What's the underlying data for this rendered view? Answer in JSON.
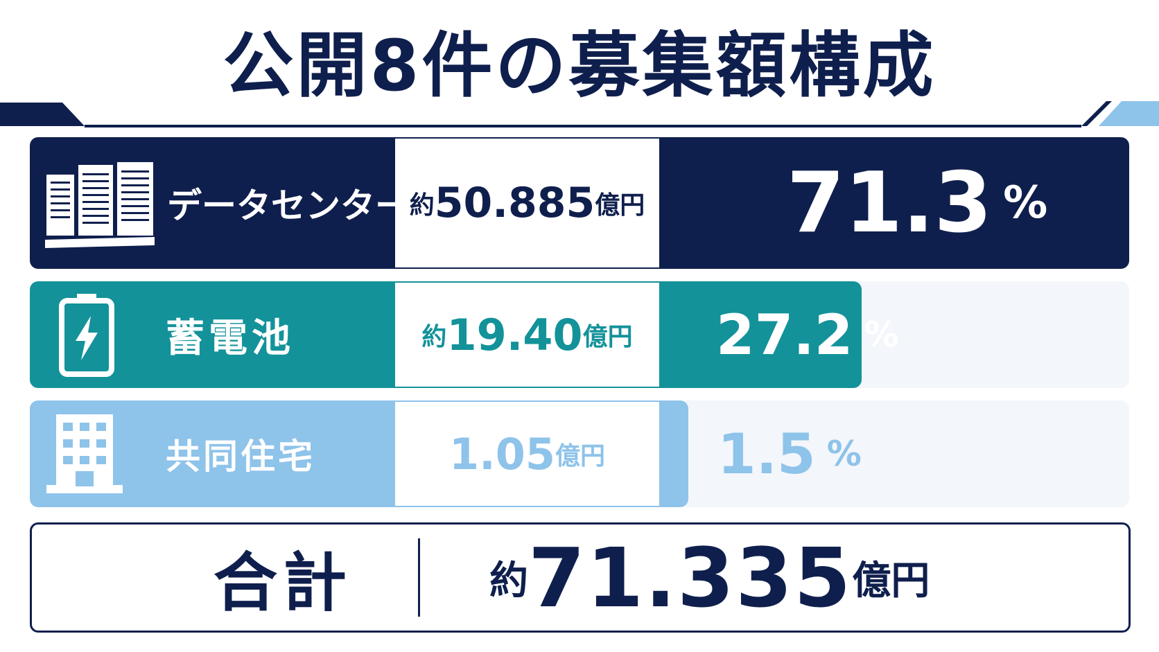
{
  "title": "公開8件の募集額構成",
  "colors": {
    "navy": "#0f1f4d",
    "teal": "#13929a",
    "lightblue": "#8ec3ea",
    "track": "#f3f6fb"
  },
  "chart_data": {
    "type": "bar",
    "orientation": "horizontal",
    "categories": [
      "データセンター",
      "蓄電池",
      "共同住宅"
    ],
    "series": [
      {
        "values": [
          71.3,
          27.2,
          1.5
        ]
      }
    ],
    "amounts": [
      {
        "prefix": "約",
        "value": "50.885",
        "unit": "億円"
      },
      {
        "prefix": "約",
        "value": "19.40",
        "unit": "億円"
      },
      {
        "prefix": "",
        "value": "1.05",
        "unit": "億円"
      }
    ],
    "percent_symbol": "%",
    "icons": [
      "server-racks-icon",
      "battery-icon",
      "building-icon"
    ],
    "total": {
      "label": "合計",
      "prefix": "約",
      "value": "71.335",
      "unit": "億円"
    }
  }
}
